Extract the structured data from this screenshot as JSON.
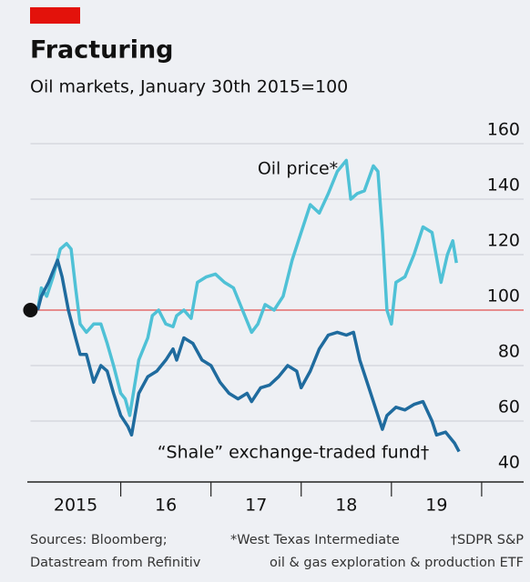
{
  "chart_data": {
    "type": "line",
    "title": "Fracturing",
    "subtitle": "Oil markets, January 30th 2015=100",
    "xlim": [
      2015,
      2019.9
    ],
    "xticks": [
      {
        "value": 2015.5,
        "label": "2015"
      },
      {
        "value": 2016.5,
        "label": "16"
      },
      {
        "value": 2017.5,
        "label": "17"
      },
      {
        "value": 2018.5,
        "label": "18"
      },
      {
        "value": 2019.5,
        "label": "19"
      }
    ],
    "ylim": [
      40,
      160
    ],
    "yticks": [
      40,
      60,
      80,
      100,
      120,
      140,
      160
    ],
    "grid": true,
    "baseline": 100,
    "baseline_color": "#e36b6b",
    "series": [
      {
        "name": "Oil price*",
        "color": "#4fc1d6",
        "x": [
          2015.08,
          2015.12,
          2015.18,
          2015.25,
          2015.33,
          2015.4,
          2015.45,
          2015.5,
          2015.55,
          2015.62,
          2015.7,
          2015.78,
          2015.85,
          2015.92,
          2016.0,
          2016.05,
          2016.1,
          2016.15,
          2016.2,
          2016.3,
          2016.35,
          2016.42,
          2016.5,
          2016.58,
          2016.62,
          2016.7,
          2016.78,
          2016.85,
          2016.95,
          2017.05,
          2017.15,
          2017.25,
          2017.35,
          2017.45,
          2017.52,
          2017.6,
          2017.7,
          2017.8,
          2017.9,
          2018.0,
          2018.1,
          2018.2,
          2018.3,
          2018.4,
          2018.5,
          2018.55,
          2018.62,
          2018.7,
          2018.8,
          2018.85,
          2018.9,
          2018.95,
          2019.0,
          2019.05,
          2019.15,
          2019.25,
          2019.35,
          2019.45,
          2019.55,
          2019.62,
          2019.68,
          2019.72
        ],
        "values": [
          100,
          108,
          105,
          112,
          122,
          124,
          122,
          108,
          95,
          92,
          95,
          95,
          88,
          80,
          70,
          68,
          62,
          72,
          82,
          90,
          98,
          100,
          95,
          94,
          98,
          100,
          97,
          110,
          112,
          113,
          110,
          108,
          100,
          92,
          95,
          102,
          100,
          105,
          118,
          128,
          138,
          135,
          142,
          150,
          154,
          140,
          142,
          143,
          152,
          150,
          128,
          100,
          95,
          110,
          112,
          120,
          130,
          128,
          110,
          120,
          125,
          117
        ]
      },
      {
        "name": "“Shale” exchange-traded fund†",
        "color": "#1f6b9e",
        "x": [
          2015.08,
          2015.12,
          2015.2,
          2015.3,
          2015.35,
          2015.42,
          2015.5,
          2015.55,
          2015.62,
          2015.7,
          2015.78,
          2015.85,
          2015.92,
          2016.0,
          2016.08,
          2016.12,
          2016.2,
          2016.3,
          2016.4,
          2016.5,
          2016.58,
          2016.62,
          2016.7,
          2016.8,
          2016.9,
          2017.0,
          2017.1,
          2017.2,
          2017.3,
          2017.4,
          2017.45,
          2017.55,
          2017.65,
          2017.75,
          2017.85,
          2017.95,
          2018.0,
          2018.1,
          2018.2,
          2018.3,
          2018.4,
          2018.5,
          2018.58,
          2018.65,
          2018.75,
          2018.85,
          2018.9,
          2018.95,
          2019.05,
          2019.15,
          2019.25,
          2019.35,
          2019.45,
          2019.5,
          2019.6,
          2019.7,
          2019.75
        ],
        "values": [
          100,
          105,
          110,
          118,
          112,
          100,
          90,
          84,
          84,
          74,
          80,
          78,
          70,
          62,
          58,
          55,
          70,
          76,
          78,
          82,
          86,
          82,
          90,
          88,
          82,
          80,
          74,
          70,
          68,
          70,
          67,
          72,
          73,
          76,
          80,
          78,
          72,
          78,
          86,
          91,
          92,
          91,
          92,
          82,
          72,
          62,
          57,
          62,
          65,
          64,
          66,
          67,
          60,
          55,
          56,
          52,
          49
        ]
      }
    ],
    "notes": [
      "Sources: Bloomberg;",
      "Datastream from Refinitiv",
      "*West Texas Intermediate",
      "†SDPR S&P",
      "oil & gas exploration & production ETF"
    ]
  }
}
